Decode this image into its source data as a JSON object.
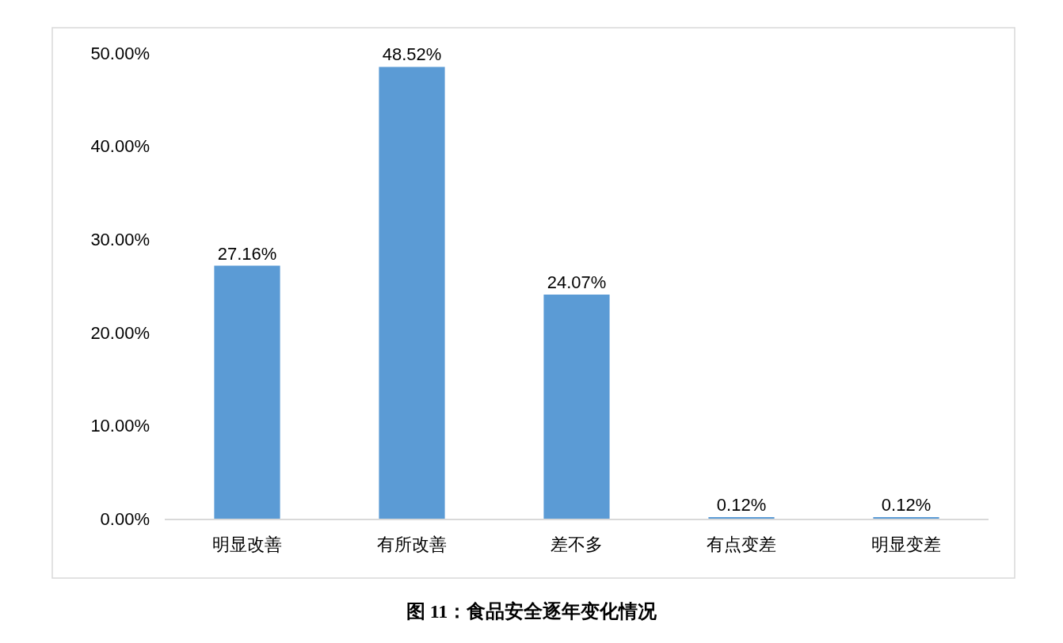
{
  "chart_data": {
    "type": "bar",
    "title": "图 11：食品安全逐年变化情况",
    "categories": [
      "明显改善",
      "有所改善",
      "差不多",
      "有点变差",
      "明显变差"
    ],
    "values": [
      27.16,
      48.52,
      24.07,
      0.12,
      0.12
    ],
    "value_labels": [
      "27.16%",
      "48.52%",
      "24.07%",
      "0.12%",
      "0.12%"
    ],
    "color": "#5b9bd5",
    "ylim": [
      0,
      50
    ],
    "yticks": [
      {
        "value": 0,
        "label": "0.00%"
      },
      {
        "value": 10,
        "label": "10.00%"
      },
      {
        "value": 20,
        "label": "20.00%"
      },
      {
        "value": 30,
        "label": "30.00%"
      },
      {
        "value": 40,
        "label": "40.00%"
      },
      {
        "value": 50,
        "label": "50.00%"
      }
    ],
    "grid": false
  }
}
